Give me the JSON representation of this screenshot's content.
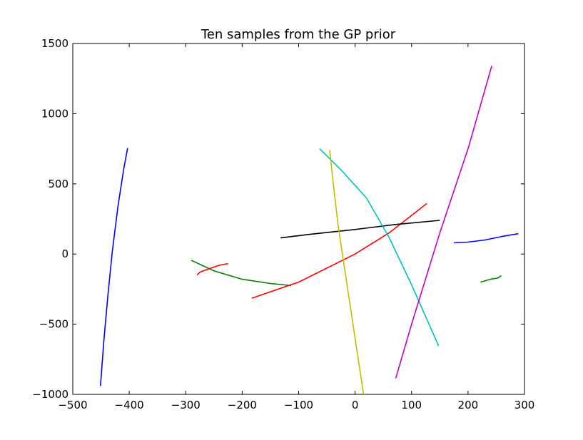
{
  "chart_data": {
    "type": "line",
    "title": "Ten samples from the GP prior",
    "xlabel": "",
    "ylabel": "",
    "xlim": [
      -500,
      300
    ],
    "ylim": [
      -1000,
      1500
    ],
    "xticks": [
      -500,
      -400,
      -300,
      -200,
      -100,
      0,
      100,
      200,
      300
    ],
    "yticks": [
      -1000,
      -500,
      0,
      500,
      1000,
      1500
    ],
    "xtick_labels": [
      "−500",
      "−400",
      "−300",
      "−200",
      "−100",
      "0",
      "100",
      "200",
      "300"
    ],
    "ytick_labels": [
      "−1000",
      "−500",
      "0",
      "500",
      "1000",
      "1500"
    ],
    "grid": false,
    "series": [
      {
        "color": "#0000ff",
        "points": [
          [
            -451,
            -940
          ],
          [
            -445,
            -620
          ],
          [
            -438,
            -300
          ],
          [
            -430,
            20
          ],
          [
            -420,
            340
          ],
          [
            -410,
            600
          ],
          [
            -403,
            755
          ]
        ]
      },
      {
        "color": "#008000",
        "points": [
          [
            -290,
            -45
          ],
          [
            -250,
            -120
          ],
          [
            -200,
            -180
          ],
          [
            -150,
            -210
          ],
          [
            -113,
            -225
          ]
        ]
      },
      {
        "color": "#ff0000",
        "points": [
          [
            -280,
            -150
          ],
          [
            -275,
            -130
          ],
          [
            -265,
            -115
          ],
          [
            -255,
            -100
          ],
          [
            -240,
            -80
          ],
          [
            -225,
            -68
          ]
        ]
      },
      {
        "color": "#ff0000",
        "points": [
          [
            -183,
            -315
          ],
          [
            -100,
            -200
          ],
          [
            0,
            0
          ],
          [
            60,
            150
          ],
          [
            127,
            360
          ]
        ]
      },
      {
        "color": "#000000",
        "points": [
          [
            -132,
            115
          ],
          [
            -80,
            140
          ],
          [
            0,
            175
          ],
          [
            70,
            210
          ],
          [
            150,
            240
          ]
        ]
      },
      {
        "color": "#00bfbf",
        "points": [
          [
            -63,
            750
          ],
          [
            -25,
            600
          ],
          [
            20,
            400
          ],
          [
            60,
            120
          ],
          [
            100,
            -220
          ],
          [
            148,
            -655
          ]
        ]
      },
      {
        "color": "#bfbf00",
        "points": [
          [
            -45,
            740
          ],
          [
            -40,
            550
          ],
          [
            -30,
            200
          ],
          [
            -15,
            -200
          ],
          [
            0,
            -600
          ],
          [
            15,
            -1000
          ]
        ]
      },
      {
        "color": "#bf00bf",
        "points": [
          [
            72,
            -885
          ],
          [
            100,
            -500
          ],
          [
            150,
            150
          ],
          [
            200,
            750
          ],
          [
            242,
            1340
          ]
        ]
      },
      {
        "color": "#0000ff",
        "points": [
          [
            175,
            80
          ],
          [
            200,
            85
          ],
          [
            230,
            100
          ],
          [
            260,
            125
          ],
          [
            289,
            145
          ]
        ]
      },
      {
        "color": "#008000",
        "points": [
          [
            222,
            -200
          ],
          [
            240,
            -180
          ],
          [
            252,
            -172
          ],
          [
            259,
            -155
          ]
        ]
      }
    ]
  }
}
